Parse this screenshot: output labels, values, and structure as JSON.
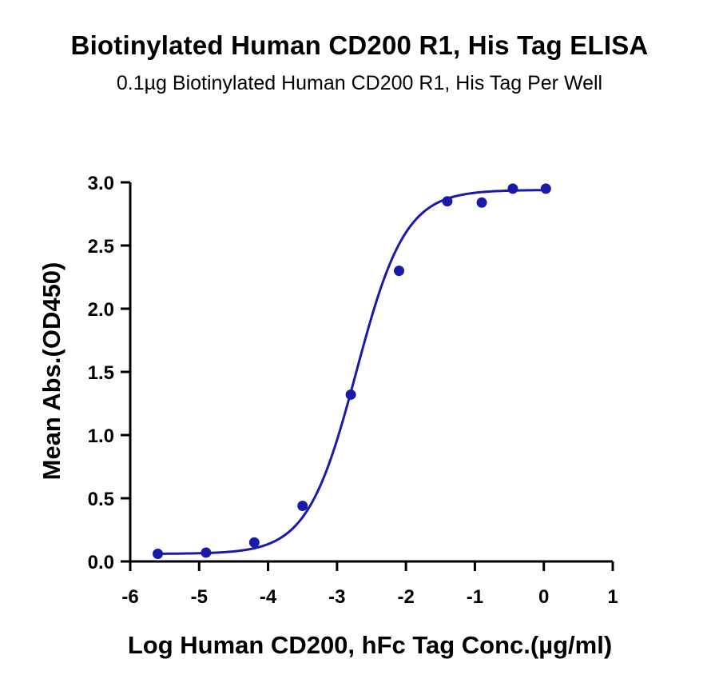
{
  "chart_data": {
    "type": "scatter",
    "title": "Biotinylated Human CD200 R1, His Tag ELISA",
    "subtitle": "0.1µg Biotinylated Human CD200 R1, His Tag Per Well",
    "xlabel": "Log Human CD200, hFc Tag Conc.(µg/ml)",
    "ylabel": "Mean Abs.(OD450)",
    "xlim": [
      -6,
      1
    ],
    "ylim": [
      0,
      3
    ],
    "x_ticks": [
      "-6",
      "-5",
      "-4",
      "-3",
      "-2",
      "-1",
      "0",
      "1"
    ],
    "y_ticks": [
      "0.0",
      "0.5",
      "1.0",
      "1.5",
      "2.0",
      "2.5",
      "3.0"
    ],
    "grid": false,
    "color": "#1a1aa8",
    "series": [
      {
        "x": [
          -5.6,
          -4.9,
          -4.2,
          -3.5,
          -2.8,
          -2.1,
          -1.4,
          -0.9,
          -0.45,
          0.03
        ],
        "y": [
          0.06,
          0.07,
          0.15,
          0.44,
          1.32,
          2.3,
          2.85,
          2.84,
          2.95,
          2.95
        ],
        "fit": "four-parameter logistic"
      }
    ]
  }
}
